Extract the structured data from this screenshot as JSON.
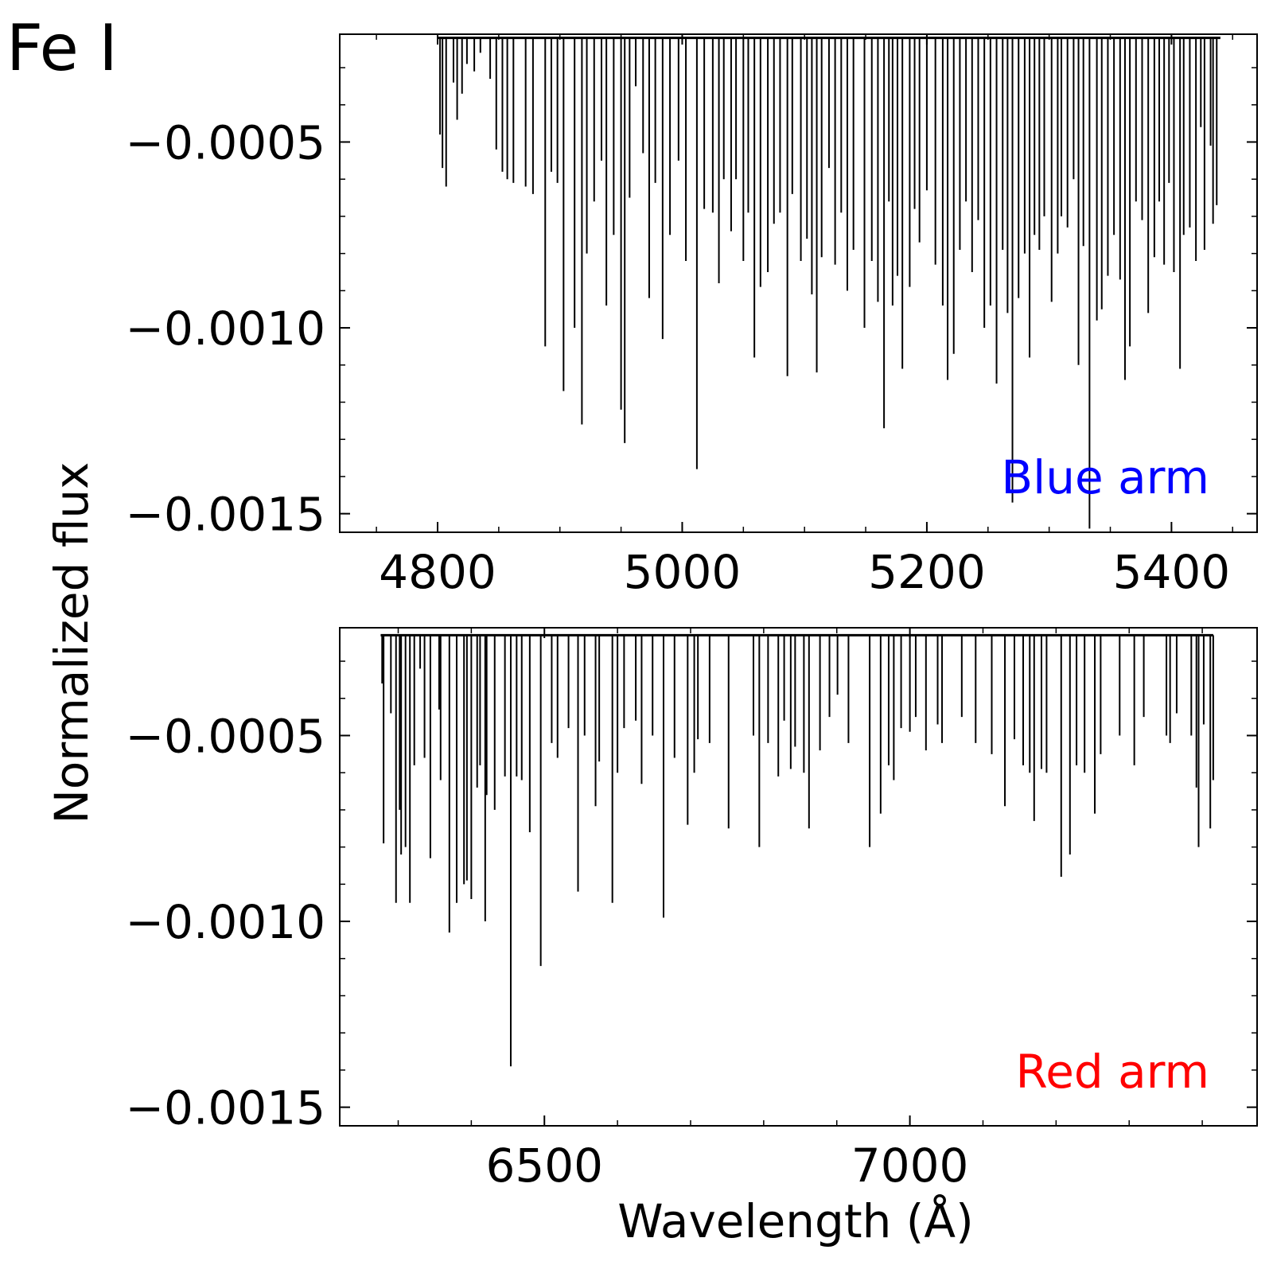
{
  "figure": {
    "title": "Fe I",
    "ylabel": "Normalized flux",
    "xlabel": "Wavelength (Å)"
  },
  "chart_data": [
    {
      "type": "line",
      "annotation": "Blue arm",
      "annotation_color": "#0000ff",
      "line_color": "#000000",
      "xlim": [
        4720,
        5470
      ],
      "ylim": [
        -0.00155,
        -0.00021
      ],
      "x_ticks": [
        4800,
        5000,
        5200,
        5400
      ],
      "x_tick_labels": [
        "4800",
        "5000",
        "5200",
        "5400"
      ],
      "x_minor_step": 50,
      "y_ticks": [
        -0.0005,
        -0.001,
        -0.0015
      ],
      "y_tick_labels": [
        "−0.0005",
        "−0.0010",
        "−0.0015"
      ],
      "y_minor_step": 0.0001,
      "continuum": -0.00022,
      "x_range": [
        4800,
        5440
      ],
      "lines": [
        [
          4802,
          -0.00048
        ],
        [
          4804,
          -0.00057
        ],
        [
          4807,
          -0.00062
        ],
        [
          4813,
          -0.00034
        ],
        [
          4816,
          -0.00044
        ],
        [
          4820,
          -0.00037
        ],
        [
          4824,
          -0.00029
        ],
        [
          4830,
          -0.00031
        ],
        [
          4835,
          -0.00026
        ],
        [
          4843,
          -0.00033
        ],
        [
          4848,
          -0.00052
        ],
        [
          4853,
          -0.00058
        ],
        [
          4857,
          -0.0006
        ],
        [
          4862,
          -0.00061
        ],
        [
          4872,
          -0.00062
        ],
        [
          4878,
          -0.00064
        ],
        [
          4888,
          -0.00105
        ],
        [
          4893,
          -0.00058
        ],
        [
          4898,
          -0.00061
        ],
        [
          4903,
          -0.00117
        ],
        [
          4912,
          -0.001
        ],
        [
          4918,
          -0.00126
        ],
        [
          4922,
          -0.0008
        ],
        [
          4928,
          -0.00066
        ],
        [
          4934,
          -0.00055
        ],
        [
          4938,
          -0.00094
        ],
        [
          4944,
          -0.00075
        ],
        [
          4950,
          -0.00122
        ],
        [
          4953,
          -0.00131
        ],
        [
          4957,
          -0.00065
        ],
        [
          4962,
          -0.00035
        ],
        [
          4968,
          -0.00053
        ],
        [
          4973,
          -0.00092
        ],
        [
          4978,
          -0.00061
        ],
        [
          4984,
          -0.00103
        ],
        [
          4990,
          -0.00075
        ],
        [
          4997,
          -0.00055
        ],
        [
          5003,
          -0.00082
        ],
        [
          5012,
          -0.00138
        ],
        [
          5018,
          -0.00068
        ],
        [
          5025,
          -0.00069
        ],
        [
          5030,
          -0.00088
        ],
        [
          5034,
          -0.0006
        ],
        [
          5040,
          -0.00074
        ],
        [
          5044,
          -0.0006
        ],
        [
          5050,
          -0.00082
        ],
        [
          5054,
          -0.00069
        ],
        [
          5059,
          -0.00108
        ],
        [
          5064,
          -0.00089
        ],
        [
          5070,
          -0.00085
        ],
        [
          5075,
          -0.00072
        ],
        [
          5080,
          -0.00069
        ],
        [
          5086,
          -0.00113
        ],
        [
          5090,
          -0.00064
        ],
        [
          5097,
          -0.00082
        ],
        [
          5102,
          -0.00076
        ],
        [
          5106,
          -0.00091
        ],
        [
          5110,
          -0.00112
        ],
        [
          5114,
          -0.00081
        ],
        [
          5120,
          -0.00057
        ],
        [
          5125,
          -0.00083
        ],
        [
          5130,
          -0.00069
        ],
        [
          5135,
          -0.0009
        ],
        [
          5140,
          -0.00079
        ],
        [
          5149,
          -0.001
        ],
        [
          5155,
          -0.00082
        ],
        [
          5160,
          -0.00093
        ],
        [
          5165,
          -0.00127
        ],
        [
          5169,
          -0.00066
        ],
        [
          5172,
          -0.00094
        ],
        [
          5176,
          -0.00086
        ],
        [
          5180,
          -0.00111
        ],
        [
          5186,
          -0.00089
        ],
        [
          5190,
          -0.00068
        ],
        [
          5194,
          -0.00077
        ],
        [
          5200,
          -0.00063
        ],
        [
          5207,
          -0.00083
        ],
        [
          5213,
          -0.00094
        ],
        [
          5217,
          -0.00114
        ],
        [
          5222,
          -0.00107
        ],
        [
          5227,
          -0.00079
        ],
        [
          5232,
          -0.00066
        ],
        [
          5237,
          -0.00085
        ],
        [
          5242,
          -0.00071
        ],
        [
          5247,
          -0.001
        ],
        [
          5252,
          -0.00094
        ],
        [
          5257,
          -0.00115
        ],
        [
          5262,
          -0.00079
        ],
        [
          5266,
          -0.00096
        ],
        [
          5270,
          -0.00147
        ],
        [
          5275,
          -0.00092
        ],
        [
          5280,
          -0.0008
        ],
        [
          5284,
          -0.00108
        ],
        [
          5288,
          -0.00075
        ],
        [
          5292,
          -0.00079
        ],
        [
          5296,
          -0.0007
        ],
        [
          5302,
          -0.00093
        ],
        [
          5307,
          -0.0008
        ],
        [
          5310,
          -0.0007
        ],
        [
          5315,
          -0.00073
        ],
        [
          5320,
          -0.0006
        ],
        [
          5324,
          -0.0011
        ],
        [
          5328,
          -0.00078
        ],
        [
          5333,
          -0.00154
        ],
        [
          5339,
          -0.00098
        ],
        [
          5343,
          -0.00095
        ],
        [
          5348,
          -0.00086
        ],
        [
          5353,
          -0.00075
        ],
        [
          5358,
          -0.00087
        ],
        [
          5362,
          -0.00114
        ],
        [
          5366,
          -0.00105
        ],
        [
          5371,
          -0.00066
        ],
        [
          5376,
          -0.00071
        ],
        [
          5381,
          -0.00096
        ],
        [
          5386,
          -0.00081
        ],
        [
          5390,
          -0.00066
        ],
        [
          5394,
          -0.00083
        ],
        [
          5398,
          -0.00061
        ],
        [
          5402,
          -0.00085
        ],
        [
          5407,
          -0.00111
        ],
        [
          5410,
          -0.00075
        ],
        [
          5415,
          -0.00073
        ],
        [
          5420,
          -0.00082
        ],
        [
          5424,
          -0.00046
        ],
        [
          5427,
          -0.00079
        ],
        [
          5432,
          -0.00051
        ],
        [
          5434,
          -0.00072
        ],
        [
          5437,
          -0.00067
        ]
      ]
    },
    {
      "type": "line",
      "annotation": "Red arm",
      "annotation_color": "#ff0000",
      "line_color": "#000000",
      "xlim": [
        6220,
        7475
      ],
      "ylim": [
        -0.00155,
        -0.00021
      ],
      "x_ticks": [
        6500,
        7000
      ],
      "x_tick_labels": [
        "6500",
        "7000"
      ],
      "x_minor_step": 100,
      "y_ticks": [
        -0.0005,
        -0.001,
        -0.0015
      ],
      "y_tick_labels": [
        "−0.0005",
        "−0.0010",
        "−0.0015"
      ],
      "y_minor_step": 0.0001,
      "continuum": -0.00023,
      "x_range": [
        6276,
        7415
      ],
      "lines": [
        [
          6278,
          -0.00036
        ],
        [
          6280,
          -0.00079
        ],
        [
          6290,
          -0.00044
        ],
        [
          6297,
          -0.00095
        ],
        [
          6302,
          -0.0007
        ],
        [
          6304,
          -0.00082
        ],
        [
          6310,
          -0.0008
        ],
        [
          6316,
          -0.00095
        ],
        [
          6322,
          -0.00058
        ],
        [
          6330,
          -0.00032
        ],
        [
          6336,
          -0.00056
        ],
        [
          6344,
          -0.00083
        ],
        [
          6356,
          -0.00043
        ],
        [
          6358,
          -0.00062
        ],
        [
          6370,
          -0.00103
        ],
        [
          6380,
          -0.00095
        ],
        [
          6390,
          -0.0009
        ],
        [
          6394,
          -0.00089
        ],
        [
          6400,
          -0.00094
        ],
        [
          6408,
          -0.00064
        ],
        [
          6412,
          -0.00058
        ],
        [
          6419,
          -0.001
        ],
        [
          6421,
          -0.00066
        ],
        [
          6432,
          -0.0007
        ],
        [
          6446,
          -0.00061
        ],
        [
          6454,
          -0.00139
        ],
        [
          6462,
          -0.00061
        ],
        [
          6469,
          -0.00062
        ],
        [
          6480,
          -0.00076
        ],
        [
          6495,
          -0.00112
        ],
        [
          6510,
          -0.00052
        ],
        [
          6518,
          -0.00056
        ],
        [
          6533,
          -0.00048
        ],
        [
          6546,
          -0.00092
        ],
        [
          6555,
          -0.0005
        ],
        [
          6570,
          -0.00069
        ],
        [
          6575,
          -0.00057
        ],
        [
          6593,
          -0.00095
        ],
        [
          6600,
          -0.0006
        ],
        [
          6609,
          -0.00048
        ],
        [
          6625,
          -0.00046
        ],
        [
          6633,
          -0.00063
        ],
        [
          6648,
          -0.0005
        ],
        [
          6663,
          -0.00099
        ],
        [
          6678,
          -0.00056
        ],
        [
          6696,
          -0.00074
        ],
        [
          6705,
          -0.0006
        ],
        [
          6710,
          -0.00051
        ],
        [
          6726,
          -0.00052
        ],
        [
          6752,
          -0.00075
        ],
        [
          6786,
          -0.0005
        ],
        [
          6794,
          -0.0008
        ],
        [
          6806,
          -0.00052
        ],
        [
          6820,
          -0.00061
        ],
        [
          6828,
          -0.00046
        ],
        [
          6837,
          -0.00059
        ],
        [
          6843,
          -0.00053
        ],
        [
          6855,
          -0.0006
        ],
        [
          6862,
          -0.00075
        ],
        [
          6877,
          -0.00054
        ],
        [
          6890,
          -0.00045
        ],
        [
          6901,
          -0.00039
        ],
        [
          6916,
          -0.00052
        ],
        [
          6945,
          -0.0008
        ],
        [
          6960,
          -0.00071
        ],
        [
          6971,
          -0.00058
        ],
        [
          6978,
          -0.00062
        ],
        [
          6988,
          -0.00048
        ],
        [
          7000,
          -0.00049
        ],
        [
          7008,
          -0.00045
        ],
        [
          7022,
          -0.00054
        ],
        [
          7038,
          -0.00047
        ],
        [
          7044,
          -0.00052
        ],
        [
          7071,
          -0.00045
        ],
        [
          7090,
          -0.00052
        ],
        [
          7112,
          -0.00055
        ],
        [
          7130,
          -0.00069
        ],
        [
          7143,
          -0.00051
        ],
        [
          7155,
          -0.00058
        ],
        [
          7164,
          -0.0006
        ],
        [
          7170,
          -0.00073
        ],
        [
          7180,
          -0.00059
        ],
        [
          7187,
          -0.0006
        ],
        [
          7207,
          -0.00088
        ],
        [
          7219,
          -0.00082
        ],
        [
          7228,
          -0.00058
        ],
        [
          7239,
          -0.0006
        ],
        [
          7253,
          -0.00071
        ],
        [
          7261,
          -0.00055
        ],
        [
          7287,
          -0.0005
        ],
        [
          7307,
          -0.00058
        ],
        [
          7320,
          -0.00045
        ],
        [
          7351,
          -0.0005
        ],
        [
          7356,
          -0.00052
        ],
        [
          7365,
          -0.00044
        ],
        [
          7385,
          -0.0005
        ],
        [
          7392,
          -0.00064
        ],
        [
          7395,
          -0.0008
        ],
        [
          7402,
          -0.00047
        ],
        [
          7411,
          -0.00075
        ],
        [
          7415,
          -0.00062
        ]
      ]
    }
  ]
}
